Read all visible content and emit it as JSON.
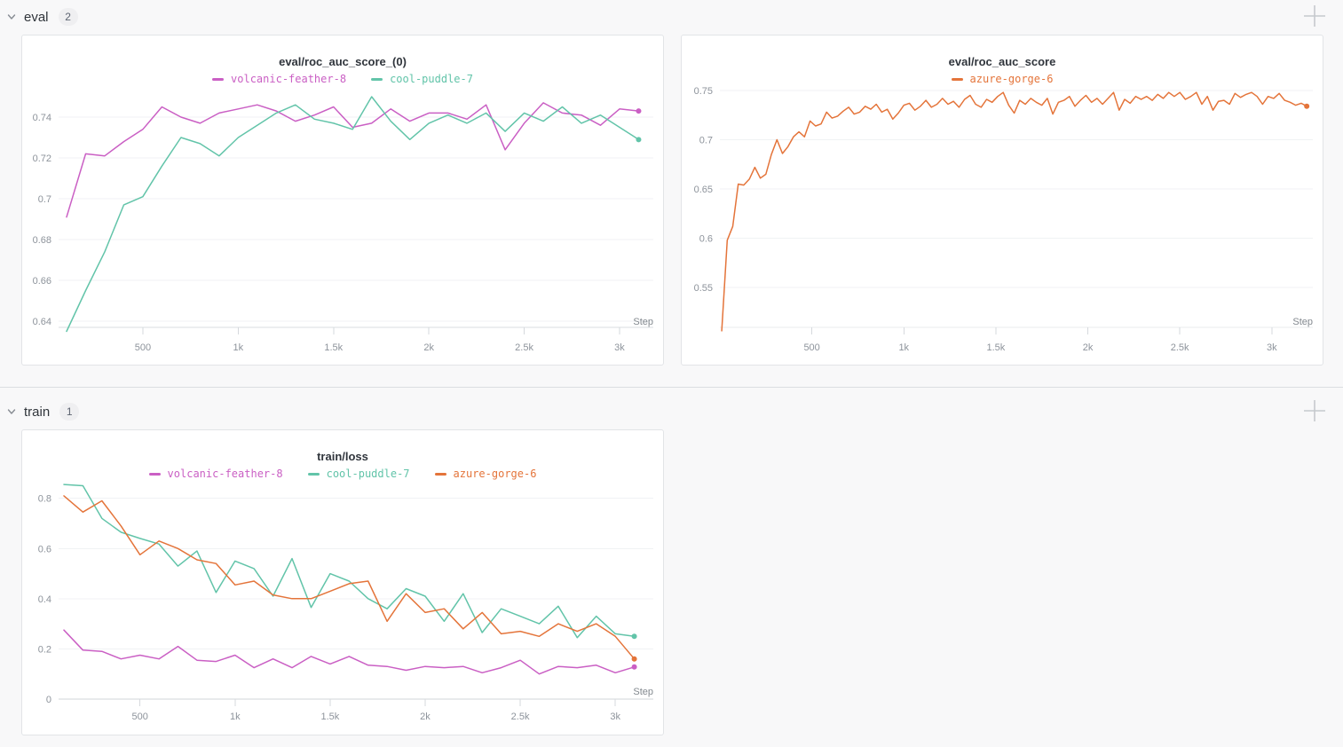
{
  "sections": [
    {
      "label": "eval",
      "count": "2"
    },
    {
      "label": "train",
      "count": "1"
    }
  ],
  "icons": {
    "chevron": "chevron-down-icon",
    "plus": "add-panel-icon"
  },
  "colors": {
    "magenta": "#ca5fc4",
    "teal": "#62c4a9",
    "orange": "#e4743a",
    "grid": "#f0f2f4",
    "tick_label": "#8d939b"
  },
  "chart_data": [
    {
      "type": "line",
      "title": "eval/roc_auc_score_(0)",
      "xlabel": "Step",
      "xlim": [
        58,
        3177
      ],
      "ylim": [
        0.6339,
        0.7535
      ],
      "grid": true,
      "legend_position": "top",
      "axis_color": "#dadde1",
      "x_ticks": [
        {
          "v": 500,
          "label": "500"
        },
        {
          "v": 1000,
          "label": "1k"
        },
        {
          "v": 1500,
          "label": "1.5k"
        },
        {
          "v": 2000,
          "label": "2k"
        },
        {
          "v": 2500,
          "label": "2.5k"
        },
        {
          "v": 3000,
          "label": "3k"
        }
      ],
      "y_ticks": [
        {
          "v": 0.74,
          "label": "0.74"
        },
        {
          "v": 0.72,
          "label": "0.72"
        },
        {
          "v": 0.7,
          "label": "0.7"
        },
        {
          "v": 0.68,
          "label": "0.68"
        },
        {
          "v": 0.66,
          "label": "0.66"
        },
        {
          "v": 0.64,
          "label": "0.64"
        }
      ],
      "series": [
        {
          "name": "volcanic-feather-8",
          "color": "#ca5fc4",
          "x": [
            100,
            200,
            300,
            400,
            500,
            600,
            700,
            800,
            900,
            1000,
            1100,
            1200,
            1300,
            1400,
            1500,
            1600,
            1700,
            1800,
            1900,
            2000,
            2100,
            2200,
            2300,
            2400,
            2500,
            2600,
            2700,
            2800,
            2900,
            3000,
            3100
          ],
          "y": [
            0.691,
            0.722,
            0.721,
            0.728,
            0.734,
            0.745,
            0.74,
            0.737,
            0.742,
            0.744,
            0.746,
            0.743,
            0.738,
            0.741,
            0.745,
            0.735,
            0.737,
            0.744,
            0.738,
            0.742,
            0.742,
            0.739,
            0.746,
            0.724,
            0.737,
            0.747,
            0.742,
            0.741,
            0.736,
            0.744,
            0.743
          ]
        },
        {
          "name": "cool-puddle-7",
          "color": "#62c4a9",
          "x": [
            100,
            200,
            300,
            400,
            500,
            600,
            700,
            800,
            900,
            1000,
            1100,
            1200,
            1300,
            1400,
            1500,
            1600,
            1700,
            1800,
            1900,
            2000,
            2100,
            2200,
            2300,
            2400,
            2500,
            2600,
            2700,
            2800,
            2900,
            3000,
            3100
          ],
          "y": [
            0.635,
            0.655,
            0.674,
            0.697,
            0.701,
            0.716,
            0.73,
            0.727,
            0.721,
            0.73,
            0.736,
            0.742,
            0.746,
            0.739,
            0.737,
            0.734,
            0.75,
            0.738,
            0.729,
            0.737,
            0.741,
            0.737,
            0.742,
            0.733,
            0.742,
            0.738,
            0.745,
            0.737,
            0.741,
            0.735,
            0.729
          ]
        }
      ]
    },
    {
      "type": "line",
      "title": "eval/roc_auc_score",
      "xlabel": "Step",
      "xlim": [
        0,
        3223
      ],
      "ylim": [
        0.5032,
        0.7554
      ],
      "grid": true,
      "legend_position": "top",
      "axis_color": "#e9ebee",
      "x_ticks": [
        {
          "v": 500,
          "label": "500"
        },
        {
          "v": 1000,
          "label": "1k"
        },
        {
          "v": 1500,
          "label": "1.5k"
        },
        {
          "v": 2000,
          "label": "2k"
        },
        {
          "v": 2500,
          "label": "2.5k"
        },
        {
          "v": 3000,
          "label": "3k"
        }
      ],
      "y_ticks": [
        {
          "v": 0.75,
          "label": "0.75"
        },
        {
          "v": 0.7,
          "label": "0.7"
        },
        {
          "v": 0.65,
          "label": "0.65"
        },
        {
          "v": 0.6,
          "label": "0.6"
        },
        {
          "v": 0.55,
          "label": "0.55"
        }
      ],
      "series": [
        {
          "name": "azure-gorge-6",
          "color": "#e4743a",
          "x": [
            10,
            40,
            70,
            100,
            130,
            160,
            190,
            220,
            250,
            280,
            310,
            340,
            370,
            400,
            430,
            460,
            490,
            520,
            550,
            580,
            610,
            640,
            670,
            700,
            730,
            760,
            790,
            820,
            850,
            880,
            910,
            940,
            970,
            1000,
            1030,
            1060,
            1090,
            1120,
            1150,
            1180,
            1210,
            1240,
            1270,
            1300,
            1330,
            1360,
            1390,
            1420,
            1450,
            1480,
            1510,
            1540,
            1570,
            1600,
            1630,
            1660,
            1690,
            1720,
            1750,
            1780,
            1810,
            1840,
            1870,
            1900,
            1930,
            1960,
            1990,
            2020,
            2050,
            2080,
            2110,
            2140,
            2170,
            2200,
            2230,
            2260,
            2290,
            2320,
            2350,
            2380,
            2410,
            2440,
            2470,
            2500,
            2530,
            2560,
            2590,
            2620,
            2650,
            2680,
            2710,
            2740,
            2770,
            2800,
            2830,
            2860,
            2890,
            2920,
            2950,
            2980,
            3010,
            3040,
            3070,
            3100,
            3130,
            3160,
            3190
          ],
          "y": [
            0.506,
            0.598,
            0.612,
            0.655,
            0.654,
            0.66,
            0.672,
            0.661,
            0.665,
            0.685,
            0.7,
            0.686,
            0.693,
            0.703,
            0.708,
            0.703,
            0.719,
            0.714,
            0.716,
            0.728,
            0.722,
            0.724,
            0.729,
            0.733,
            0.726,
            0.728,
            0.734,
            0.731,
            0.736,
            0.728,
            0.731,
            0.721,
            0.727,
            0.735,
            0.737,
            0.73,
            0.734,
            0.74,
            0.733,
            0.736,
            0.742,
            0.736,
            0.739,
            0.733,
            0.741,
            0.745,
            0.736,
            0.733,
            0.741,
            0.738,
            0.744,
            0.748,
            0.735,
            0.727,
            0.74,
            0.736,
            0.742,
            0.738,
            0.735,
            0.742,
            0.726,
            0.738,
            0.74,
            0.744,
            0.734,
            0.74,
            0.745,
            0.738,
            0.742,
            0.736,
            0.742,
            0.748,
            0.73,
            0.741,
            0.737,
            0.744,
            0.741,
            0.744,
            0.74,
            0.746,
            0.742,
            0.748,
            0.744,
            0.748,
            0.741,
            0.744,
            0.748,
            0.736,
            0.744,
            0.73,
            0.739,
            0.74,
            0.736,
            0.747,
            0.743,
            0.746,
            0.748,
            0.744,
            0.736,
            0.744,
            0.742,
            0.747,
            0.74,
            0.738,
            0.735,
            0.737,
            0.734
          ]
        }
      ]
    },
    {
      "type": "line",
      "title": "train/loss",
      "xlabel": "Step",
      "xlim": [
        72,
        3200
      ],
      "ylim": [
        0,
        0.8625
      ],
      "grid": true,
      "legend_position": "top",
      "axis_color": "#d2d5d9",
      "x_ticks": [
        {
          "v": 500,
          "label": "500"
        },
        {
          "v": 1000,
          "label": "1k"
        },
        {
          "v": 1500,
          "label": "1.5k"
        },
        {
          "v": 2000,
          "label": "2k"
        },
        {
          "v": 2500,
          "label": "2.5k"
        },
        {
          "v": 3000,
          "label": "3k"
        }
      ],
      "y_ticks": [
        {
          "v": 0.8,
          "label": "0.8"
        },
        {
          "v": 0.6,
          "label": "0.6"
        },
        {
          "v": 0.4,
          "label": "0.4"
        },
        {
          "v": 0.2,
          "label": "0.2"
        },
        {
          "v": 0,
          "label": "0"
        }
      ],
      "series": [
        {
          "name": "volcanic-feather-8",
          "color": "#ca5fc4",
          "x": [
            100,
            200,
            300,
            400,
            500,
            600,
            700,
            800,
            900,
            1000,
            1100,
            1200,
            1300,
            1400,
            1500,
            1600,
            1700,
            1800,
            1900,
            2000,
            2100,
            2200,
            2300,
            2400,
            2500,
            2600,
            2700,
            2800,
            2900,
            3000,
            3100
          ],
          "y": [
            0.275,
            0.195,
            0.19,
            0.16,
            0.175,
            0.16,
            0.21,
            0.155,
            0.15,
            0.175,
            0.125,
            0.16,
            0.125,
            0.17,
            0.14,
            0.17,
            0.135,
            0.13,
            0.115,
            0.13,
            0.125,
            0.13,
            0.105,
            0.125,
            0.155,
            0.1,
            0.13,
            0.125,
            0.135,
            0.105,
            0.128
          ]
        },
        {
          "name": "cool-puddle-7",
          "color": "#62c4a9",
          "x": [
            100,
            200,
            300,
            400,
            500,
            600,
            700,
            800,
            900,
            1000,
            1100,
            1200,
            1300,
            1400,
            1500,
            1600,
            1700,
            1800,
            1900,
            2000,
            2100,
            2200,
            2300,
            2400,
            2500,
            2600,
            2700,
            2800,
            2900,
            3000,
            3100
          ],
          "y": [
            0.855,
            0.85,
            0.72,
            0.665,
            0.64,
            0.618,
            0.53,
            0.59,
            0.425,
            0.55,
            0.52,
            0.41,
            0.56,
            0.365,
            0.5,
            0.47,
            0.4,
            0.36,
            0.44,
            0.41,
            0.31,
            0.42,
            0.265,
            0.36,
            0.33,
            0.3,
            0.37,
            0.245,
            0.33,
            0.26,
            0.25
          ]
        },
        {
          "name": "azure-gorge-6",
          "color": "#e4743a",
          "x": [
            100,
            200,
            300,
            400,
            500,
            600,
            700,
            800,
            900,
            1000,
            1100,
            1200,
            1300,
            1400,
            1500,
            1600,
            1700,
            1800,
            1900,
            2000,
            2100,
            2200,
            2300,
            2400,
            2500,
            2600,
            2700,
            2800,
            2900,
            3000,
            3100
          ],
          "y": [
            0.81,
            0.745,
            0.79,
            0.69,
            0.575,
            0.63,
            0.6,
            0.555,
            0.54,
            0.455,
            0.47,
            0.415,
            0.4,
            0.4,
            0.43,
            0.46,
            0.47,
            0.31,
            0.42,
            0.345,
            0.36,
            0.28,
            0.345,
            0.26,
            0.27,
            0.25,
            0.3,
            0.27,
            0.3,
            0.25,
            0.16
          ]
        }
      ]
    }
  ]
}
